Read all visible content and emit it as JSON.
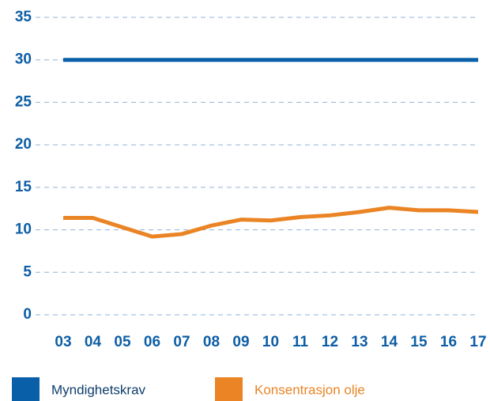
{
  "chart_data": {
    "type": "line",
    "categories": [
      "03",
      "04",
      "05",
      "06",
      "07",
      "08",
      "09",
      "10",
      "11",
      "12",
      "13",
      "14",
      "15",
      "16",
      "17"
    ],
    "series": [
      {
        "name": "Myndighetskrav",
        "color": "#0a60a8",
        "values": [
          30,
          30,
          30,
          30,
          30,
          30,
          30,
          30,
          30,
          30,
          30,
          30,
          30,
          30,
          30
        ]
      },
      {
        "name": "Konsentrasjon olje",
        "color": "#ea8424",
        "values": [
          11.4,
          11.4,
          10.3,
          9.2,
          9.5,
          10.5,
          11.2,
          11.1,
          11.5,
          11.7,
          12.1,
          12.6,
          12.3,
          12.3,
          12.1
        ]
      }
    ],
    "ylim": [
      0,
      35
    ],
    "yticks": [
      0,
      5,
      10,
      15,
      20,
      25,
      30,
      35
    ],
    "grid": true
  }
}
